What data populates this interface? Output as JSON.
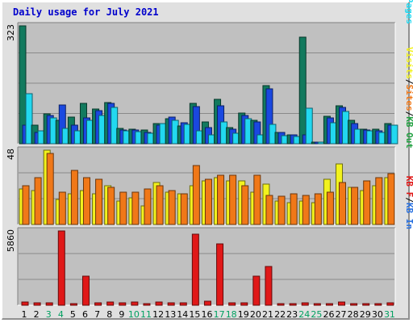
{
  "title": "Daily usage for July 2021",
  "colors": {
    "hits": "#127a5e",
    "files": "#1a48e0",
    "pages": "#22d8f0",
    "visits": "#f2f21e",
    "sites": "#f07818",
    "kb_in": "#2870e0",
    "kb_out": "#20a040",
    "kb": "#e01818",
    "weekend": "#00a060",
    "weekday": "#000000",
    "plot_bg": "#c0c0c0",
    "frame_bg": "#e0e0e0"
  },
  "chart_data": [
    {
      "type": "bar",
      "panel": "top",
      "max_label": "323",
      "ylim": [
        0,
        323
      ],
      "right_label": [
        {
          "text": "Hits",
          "color": "#127a5e"
        },
        {
          "text": "/",
          "color": "#000000"
        },
        {
          "text": "Files",
          "color": "#1a48e0"
        },
        {
          "text": "/",
          "color": "#000000"
        },
        {
          "text": "Pages",
          "color": "#22d8f0"
        }
      ],
      "categories": [
        "1",
        "2",
        "3",
        "4",
        "5",
        "6",
        "7",
        "8",
        "9",
        "10",
        "11",
        "12",
        "13",
        "14",
        "15",
        "16",
        "17",
        "18",
        "19",
        "20",
        "21",
        "22",
        "23",
        "24",
        "25",
        "26",
        "27",
        "28",
        "29",
        "30",
        "31"
      ],
      "series": [
        {
          "name": "Hits",
          "values": [
            323,
            50,
            82,
            65,
            72,
            110,
            95,
            112,
            42,
            40,
            38,
            55,
            68,
            48,
            110,
            60,
            122,
            45,
            85,
            65,
            160,
            32,
            25,
            292,
            5,
            75,
            105,
            65,
            40,
            40,
            55
          ]
        },
        {
          "name": "Files",
          "values": [
            50,
            32,
            78,
            107,
            50,
            70,
            90,
            110,
            38,
            38,
            30,
            50,
            72,
            58,
            102,
            45,
            105,
            40,
            78,
            60,
            150,
            30,
            25,
            25,
            5,
            70,
            100,
            55,
            38,
            35,
            50
          ]
        },
        {
          "name": "Pages",
          "values": [
            138,
            35,
            70,
            42,
            35,
            65,
            78,
            100,
            35,
            33,
            28,
            55,
            65,
            52,
            35,
            25,
            60,
            28,
            68,
            25,
            52,
            22,
            20,
            97,
            5,
            58,
            88,
            40,
            35,
            30,
            50
          ]
        }
      ]
    },
    {
      "type": "bar",
      "panel": "middle",
      "max_label": "48",
      "ylim": [
        0,
        48
      ],
      "right_label": [
        {
          "text": "Visits",
          "color": "#f2f21e"
        },
        {
          "text": "/",
          "color": "#000000"
        },
        {
          "text": "Sites",
          "color": "#f07818"
        },
        {
          "text": "/",
          "color": "#000000"
        },
        {
          "text": "KB Out",
          "color": "#20a040"
        }
      ],
      "categories": [
        "1",
        "2",
        "3",
        "4",
        "5",
        "6",
        "7",
        "8",
        "9",
        "10",
        "11",
        "12",
        "13",
        "14",
        "15",
        "16",
        "17",
        "18",
        "19",
        "20",
        "21",
        "22",
        "23",
        "24",
        "25",
        "26",
        "27",
        "28",
        "29",
        "30",
        "31"
      ],
      "series": [
        {
          "name": "Visits",
          "values": [
            23,
            22,
            48,
            16,
            20,
            22,
            20,
            25,
            15,
            17,
            12,
            27,
            21,
            20,
            25,
            28,
            30,
            28,
            28,
            21,
            26,
            15,
            14,
            15,
            14,
            29,
            39,
            24,
            22,
            25,
            30
          ]
        },
        {
          "name": "Sites",
          "values": [
            25,
            30,
            46,
            21,
            35,
            30,
            29,
            24,
            21,
            21,
            23,
            25,
            22,
            20,
            38,
            29,
            32,
            32,
            25,
            32,
            19,
            18,
            20,
            19,
            20,
            21,
            27,
            24,
            28,
            30,
            33
          ]
        }
      ]
    },
    {
      "type": "bar",
      "panel": "bottom",
      "max_label": "5860",
      "ylim": [
        0,
        5860
      ],
      "right_label": [
        {
          "text": "KB F",
          "color": "#e01818"
        },
        {
          "text": "/",
          "color": "#000000"
        },
        {
          "text": "KB In",
          "color": "#2870e0"
        }
      ],
      "categories": [
        "1",
        "2",
        "3",
        "4",
        "5",
        "6",
        "7",
        "8",
        "9",
        "10",
        "11",
        "12",
        "13",
        "14",
        "15",
        "16",
        "17",
        "18",
        "19",
        "20",
        "21",
        "22",
        "23",
        "24",
        "25",
        "26",
        "27",
        "28",
        "29",
        "30",
        "31"
      ],
      "series": [
        {
          "name": "KB F",
          "values": [
            250,
            220,
            200,
            5860,
            120,
            2300,
            180,
            240,
            180,
            280,
            120,
            240,
            190,
            160,
            5600,
            300,
            4860,
            160,
            160,
            2300,
            3050,
            120,
            120,
            180,
            120,
            120,
            280,
            150,
            120,
            120,
            220
          ]
        }
      ],
      "day_labels": [
        "1",
        "2",
        "3",
        "4",
        "5",
        "6",
        "7",
        "8",
        "9",
        "10",
        "11",
        "12",
        "13",
        "14",
        "15",
        "16",
        "17",
        "18",
        "19",
        "20",
        "21",
        "22",
        "23",
        "24",
        "25",
        "26",
        "27",
        "28",
        "29",
        "30",
        "31"
      ],
      "weekend_days": [
        3,
        4,
        10,
        11,
        17,
        18,
        24,
        25,
        31
      ]
    }
  ]
}
